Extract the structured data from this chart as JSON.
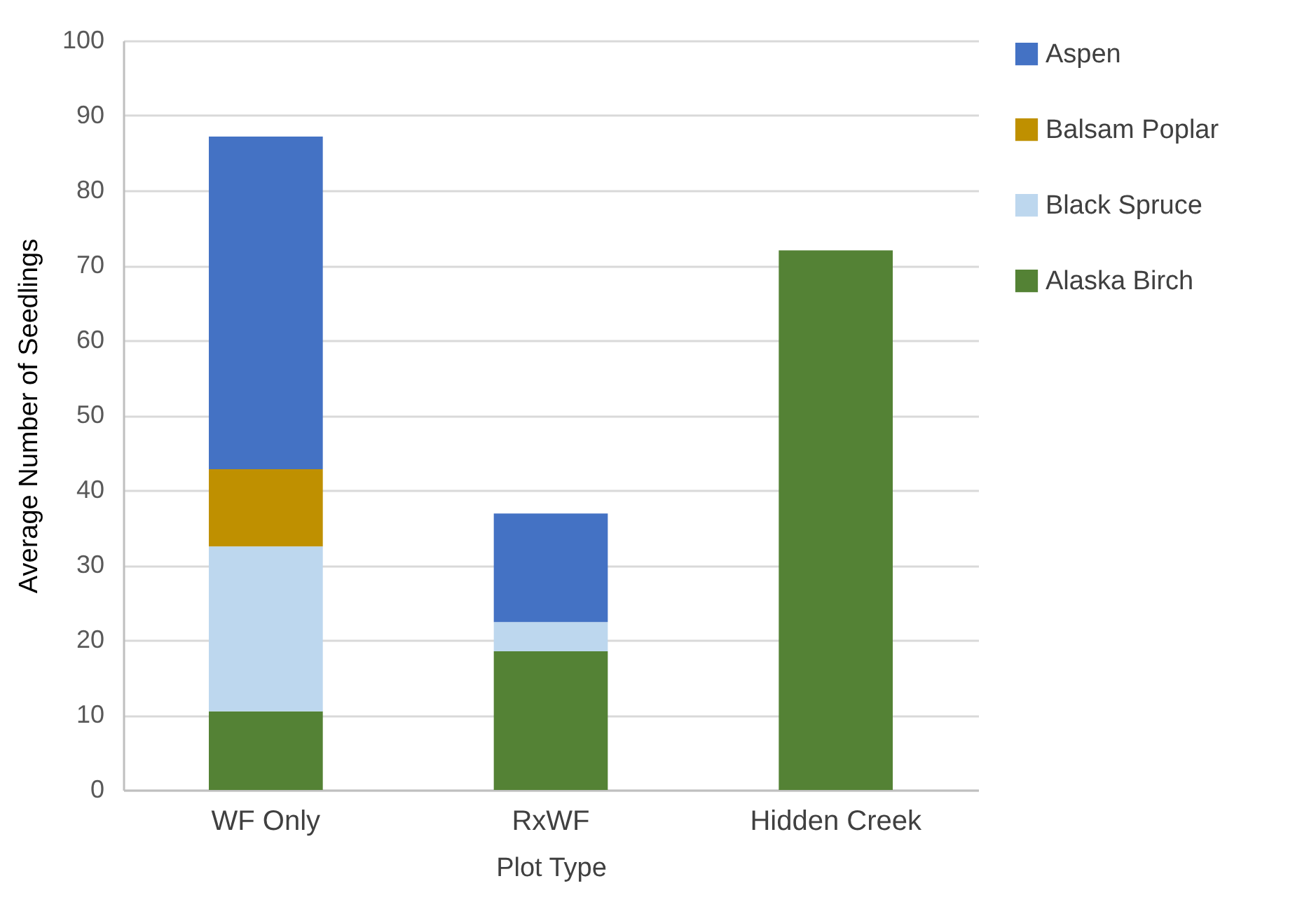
{
  "chart_data": {
    "type": "bar",
    "stacked": true,
    "xlabel": "Plot Type",
    "ylabel": "Average Number of Seedlings",
    "categories": [
      "WF Only",
      "RxWF",
      "Hidden Creek"
    ],
    "series": [
      {
        "name": "Alaska Birch",
        "color": "#548235",
        "values": [
          10.5,
          18.5,
          72.0
        ]
      },
      {
        "name": "Black Spruce",
        "color": "#bdd7ee",
        "values": [
          22.0,
          3.9,
          null
        ]
      },
      {
        "name": "Balsam Poplar",
        "color": "#bf9000",
        "values": [
          10.3,
          null,
          null
        ]
      },
      {
        "name": "Aspen",
        "color": "#4472c4",
        "values": [
          44.4,
          14.5,
          null
        ]
      }
    ],
    "ylim": [
      0,
      100
    ],
    "yticks": [
      0,
      10,
      20,
      30,
      40,
      50,
      60,
      70,
      80,
      90,
      100
    ],
    "grid": "y",
    "legend": "top right"
  }
}
